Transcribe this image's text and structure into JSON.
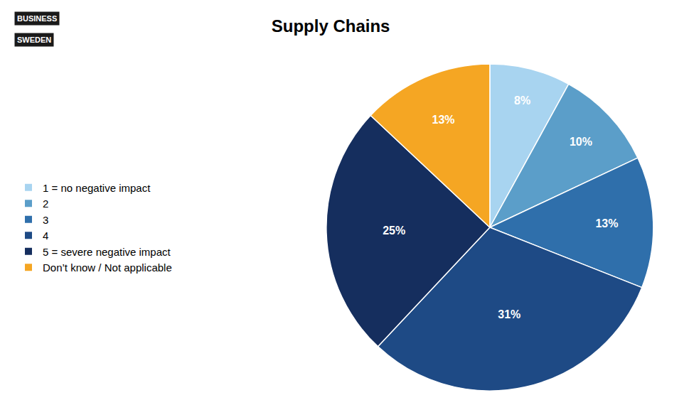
{
  "chart_data": {
    "type": "pie",
    "title": "Supply Chains",
    "categories": [
      "1 = no negative impact",
      "2",
      "3",
      "4",
      "5 = severe negative impact",
      "Don’t know / Not applicable"
    ],
    "values": [
      8,
      10,
      13,
      31,
      25,
      13
    ],
    "value_labels": [
      "8%",
      "10%",
      "13%",
      "31%",
      "25%",
      "13%"
    ],
    "colors": [
      "#A8D4F0",
      "#5B9EC9",
      "#2F6FAB",
      "#1E4A85",
      "#152E5E",
      "#F5A623"
    ],
    "data_labels": true,
    "legend": "left",
    "annotations": [
      "BUSINESS",
      "SWEDEN"
    ]
  }
}
